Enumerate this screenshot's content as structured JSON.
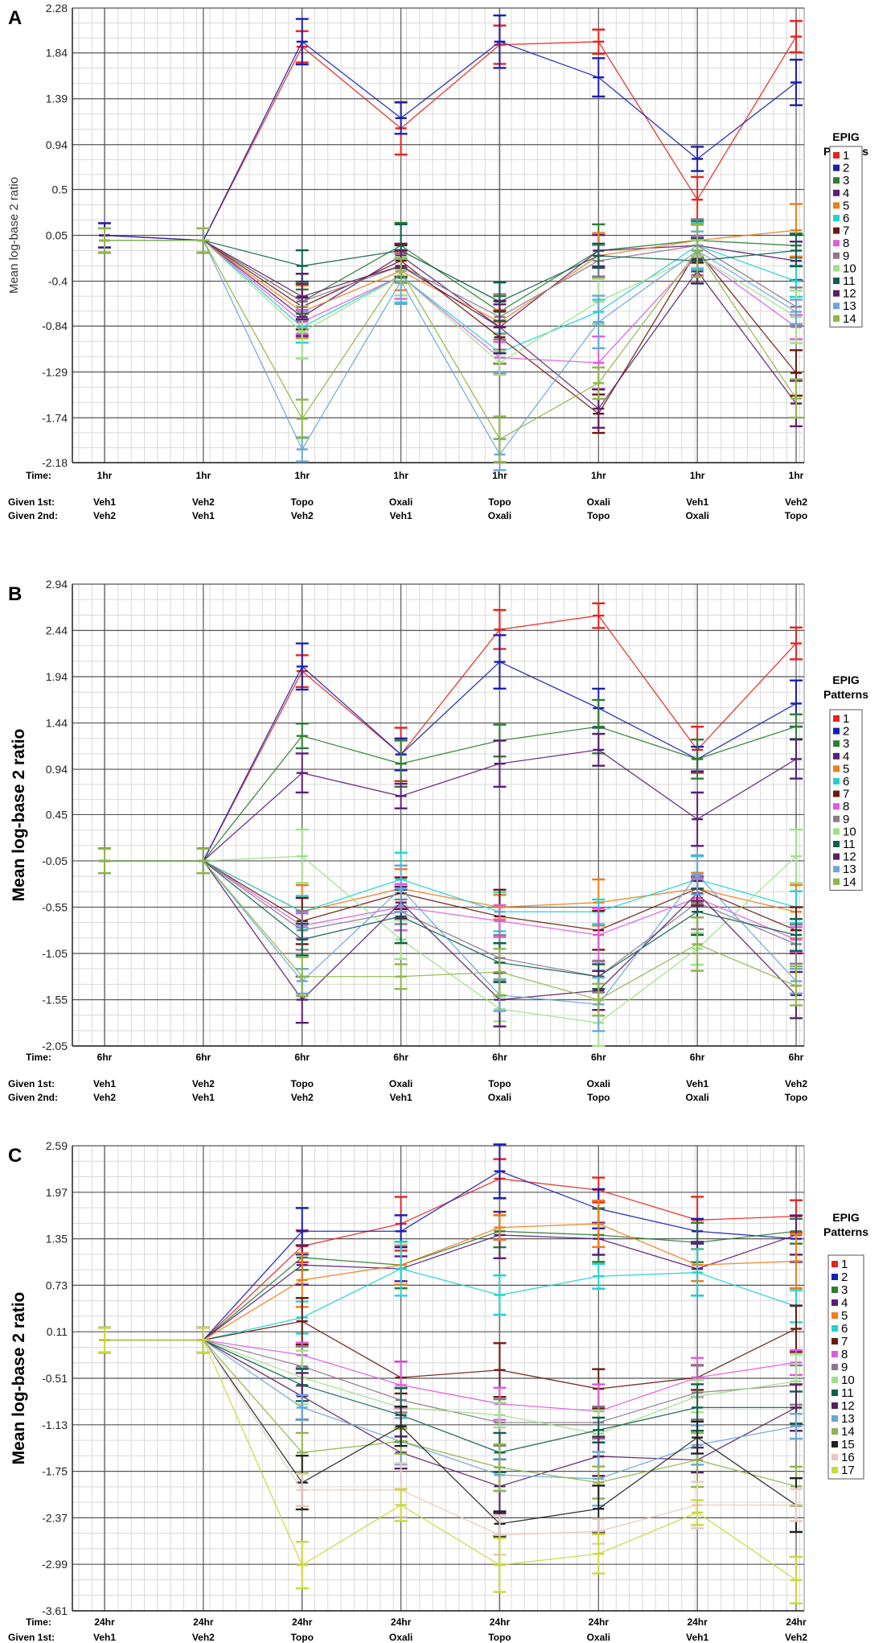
{
  "figure": {
    "conditions_row1_label": "Given 1st:",
    "conditions_row2_label": "Given 2nd:",
    "time_label": "Time:",
    "given1": [
      "Veh1",
      "Veh2",
      "Topo",
      "Oxali",
      "Topo",
      "Oxali",
      "Veh1",
      "Veh2"
    ],
    "given2": [
      "Veh2",
      "Veh1",
      "Veh2",
      "Veh1",
      "Oxali",
      "Topo",
      "Oxali",
      "Topo"
    ],
    "legend_title_1": "EPIG",
    "legend_title_2": "Patterns"
  },
  "palette": [
    "#e8231e",
    "#1b1fb0",
    "#2e7d32",
    "#5b1d7a",
    "#ee7d1c",
    "#22d3d3",
    "#6b1a10",
    "#e05ae0",
    "#8a7a8a",
    "#9fe08a",
    "#0f5f4e",
    "#5a1f66",
    "#6aa6d8",
    "#8fb54a",
    "#222222",
    "#e6c9c0",
    "#c8d93a"
  ],
  "chart_data": [
    {
      "panel": "A",
      "type": "line",
      "ylabel": "Mean log-base 2 ratio",
      "yticks": [
        2.28,
        1.84,
        1.39,
        0.94,
        0.5,
        0.05,
        -0.4,
        -0.84,
        -1.29,
        -1.74,
        -2.18
      ],
      "ylim": [
        -2.18,
        2.28
      ],
      "time": "1hr",
      "legend": [
        "1",
        "2",
        "3",
        "4",
        "5",
        "6",
        "7",
        "8",
        "9",
        "10",
        "11",
        "12",
        "13",
        "14"
      ],
      "series": [
        {
          "name": "1",
          "values": [
            0.05,
            0.0,
            1.9,
            1.1,
            1.92,
            1.95,
            0.4,
            2.0
          ]
        },
        {
          "name": "2",
          "values": [
            0.05,
            0.0,
            1.95,
            1.2,
            1.95,
            1.6,
            0.8,
            1.55
          ]
        },
        {
          "name": "3",
          "values": [
            0.0,
            0.0,
            -0.6,
            -0.05,
            -0.7,
            -0.1,
            0.0,
            -0.05
          ]
        },
        {
          "name": "4",
          "values": [
            0.0,
            0.0,
            -0.75,
            -0.15,
            -0.85,
            -0.1,
            -0.05,
            -0.2
          ]
        },
        {
          "name": "5",
          "values": [
            0.0,
            0.0,
            -0.7,
            -0.3,
            -0.8,
            -0.15,
            0.0,
            0.1
          ]
        },
        {
          "name": "6",
          "values": [
            0.0,
            0.0,
            -0.85,
            -0.35,
            -1.1,
            -0.7,
            -0.05,
            -0.4
          ]
        },
        {
          "name": "7",
          "values": [
            0.0,
            0.0,
            -0.65,
            -0.2,
            -0.95,
            -1.7,
            -0.1,
            -1.3
          ]
        },
        {
          "name": "8",
          "values": [
            0.0,
            0.0,
            -0.8,
            -0.35,
            -1.15,
            -1.2,
            -0.15,
            -0.85
          ]
        },
        {
          "name": "9",
          "values": [
            0.0,
            0.0,
            -0.6,
            -0.25,
            -0.75,
            -0.2,
            -0.05,
            -0.65
          ]
        },
        {
          "name": "10",
          "values": [
            0.0,
            0.0,
            -0.9,
            -0.35,
            -1.2,
            -0.6,
            -0.15,
            -0.75
          ]
        },
        {
          "name": "11",
          "values": [
            0.0,
            0.0,
            -0.25,
            -0.1,
            -0.6,
            -0.15,
            -0.2,
            -0.1
          ]
        },
        {
          "name": "12",
          "values": [
            0.0,
            0.0,
            -0.55,
            -0.25,
            -0.85,
            -1.65,
            -0.3,
            -1.6
          ]
        },
        {
          "name": "13",
          "values": [
            0.0,
            0.0,
            -2.05,
            -0.4,
            -2.1,
            -0.8,
            -0.1,
            -0.7
          ]
        },
        {
          "name": "14",
          "values": [
            0.0,
            0.0,
            -1.75,
            -0.3,
            -1.95,
            -1.4,
            -0.1,
            -1.55
          ]
        }
      ]
    },
    {
      "panel": "B",
      "type": "line",
      "ylabel": "Mean log-base 2 ratio",
      "yticks": [
        2.94,
        2.44,
        1.94,
        1.44,
        0.94,
        0.45,
        -0.05,
        -0.55,
        -1.05,
        -1.55,
        -2.05
      ],
      "ylim": [
        -2.05,
        2.94
      ],
      "time": "6hr",
      "legend": [
        "1",
        "2",
        "3",
        "4",
        "5",
        "6",
        "7",
        "8",
        "9",
        "10",
        "11",
        "12",
        "13",
        "14"
      ],
      "series": [
        {
          "name": "1",
          "values": [
            -0.05,
            -0.05,
            2.0,
            1.1,
            2.45,
            2.6,
            1.15,
            2.3
          ]
        },
        {
          "name": "2",
          "values": [
            -0.05,
            -0.05,
            2.05,
            1.1,
            2.1,
            1.6,
            1.05,
            1.65
          ]
        },
        {
          "name": "3",
          "values": [
            -0.05,
            -0.05,
            1.3,
            1.0,
            1.25,
            1.4,
            1.05,
            1.4
          ]
        },
        {
          "name": "4",
          "values": [
            -0.05,
            -0.05,
            0.9,
            0.65,
            1.0,
            1.15,
            0.4,
            1.05
          ]
        },
        {
          "name": "5",
          "values": [
            -0.05,
            -0.05,
            -0.6,
            -0.35,
            -0.55,
            -0.5,
            -0.35,
            -0.6
          ]
        },
        {
          "name": "6",
          "values": [
            -0.05,
            -0.05,
            -0.6,
            -0.25,
            -0.6,
            -0.6,
            -0.25,
            -0.55
          ]
        },
        {
          "name": "7",
          "values": [
            -0.05,
            -0.05,
            -0.7,
            -0.4,
            -0.65,
            -0.8,
            -0.35,
            -0.8
          ]
        },
        {
          "name": "8",
          "values": [
            -0.05,
            -0.05,
            -0.75,
            -0.55,
            -0.7,
            -0.85,
            -0.45,
            -0.9
          ]
        },
        {
          "name": "9",
          "values": [
            -0.05,
            -0.05,
            -0.8,
            -0.6,
            -1.1,
            -1.3,
            -0.5,
            -0.95
          ]
        },
        {
          "name": "10",
          "values": [
            -0.05,
            -0.05,
            0.0,
            -0.9,
            -1.65,
            -1.8,
            -1.0,
            0.0
          ]
        },
        {
          "name": "11",
          "values": [
            -0.05,
            -0.05,
            -0.9,
            -0.65,
            -1.15,
            -1.3,
            -0.6,
            -0.85
          ]
        },
        {
          "name": "12",
          "values": [
            -0.05,
            -0.05,
            -1.55,
            -0.5,
            -1.55,
            -1.45,
            -0.4,
            -1.5
          ]
        },
        {
          "name": "13",
          "values": [
            -0.05,
            -0.05,
            -1.35,
            -0.35,
            -1.5,
            -1.6,
            -0.2,
            -1.35
          ]
        },
        {
          "name": "14",
          "values": [
            -0.05,
            -0.05,
            -1.3,
            -1.3,
            -1.25,
            -1.55,
            -0.95,
            -1.4
          ]
        }
      ]
    },
    {
      "panel": "C",
      "type": "line",
      "ylabel": "Mean log-base 2 ratio",
      "yticks": [
        2.59,
        1.97,
        1.35,
        0.73,
        0.11,
        -0.51,
        -1.13,
        -1.75,
        -2.37,
        -2.99,
        -3.61
      ],
      "ylim": [
        -3.61,
        2.59
      ],
      "time": "24hr",
      "legend": [
        "1",
        "2",
        "3",
        "4",
        "5",
        "6",
        "7",
        "8",
        "9",
        "10",
        "11",
        "12",
        "13",
        "14",
        "15",
        "16",
        "17"
      ],
      "series": [
        {
          "name": "1",
          "values": [
            0.0,
            0.0,
            1.25,
            1.55,
            2.15,
            2.0,
            1.6,
            1.65
          ]
        },
        {
          "name": "2",
          "values": [
            0.0,
            0.0,
            1.45,
            1.45,
            2.25,
            1.75,
            1.45,
            1.35
          ]
        },
        {
          "name": "3",
          "values": [
            0.0,
            0.0,
            1.1,
            1.0,
            1.45,
            1.4,
            1.3,
            1.45
          ]
        },
        {
          "name": "4",
          "values": [
            0.0,
            0.0,
            1.0,
            0.95,
            1.4,
            1.35,
            0.95,
            1.4
          ]
        },
        {
          "name": "5",
          "values": [
            0.0,
            0.0,
            0.8,
            1.0,
            1.5,
            1.55,
            1.0,
            1.05
          ]
        },
        {
          "name": "6",
          "values": [
            0.0,
            0.0,
            0.3,
            0.95,
            0.6,
            0.85,
            0.9,
            0.45
          ]
        },
        {
          "name": "7",
          "values": [
            0.0,
            0.0,
            0.25,
            -0.5,
            -0.4,
            -0.65,
            -0.5,
            0.15
          ]
        },
        {
          "name": "8",
          "values": [
            0.0,
            0.0,
            -0.2,
            -0.6,
            -0.85,
            -0.95,
            -0.5,
            -0.3
          ]
        },
        {
          "name": "9",
          "values": [
            0.0,
            0.0,
            -0.35,
            -0.8,
            -1.1,
            -1.1,
            -0.7,
            -0.6
          ]
        },
        {
          "name": "10",
          "values": [
            0.0,
            0.0,
            -0.5,
            -0.9,
            -1.0,
            -1.25,
            -0.75,
            -0.55
          ]
        },
        {
          "name": "11",
          "values": [
            0.0,
            0.0,
            -0.6,
            -1.0,
            -1.5,
            -1.2,
            -0.9,
            -0.9
          ]
        },
        {
          "name": "12",
          "values": [
            0.0,
            0.0,
            -0.75,
            -1.5,
            -1.95,
            -1.55,
            -1.6,
            -0.9
          ]
        },
        {
          "name": "13",
          "values": [
            0.0,
            0.0,
            -0.9,
            -1.35,
            -1.8,
            -1.85,
            -1.4,
            -1.15
          ]
        },
        {
          "name": "14",
          "values": [
            0.0,
            0.0,
            -1.5,
            -1.35,
            -1.7,
            -1.9,
            -1.6,
            -1.95
          ]
        },
        {
          "name": "15",
          "values": [
            0.0,
            0.0,
            -1.9,
            -1.15,
            -2.45,
            -2.25,
            -1.3,
            -2.2
          ]
        },
        {
          "name": "16",
          "values": [
            0.0,
            0.0,
            -2.0,
            -2.0,
            -2.6,
            -2.55,
            -2.2,
            -2.2
          ]
        },
        {
          "name": "17",
          "values": [
            0.0,
            0.0,
            -3.0,
            -2.2,
            -3.0,
            -2.85,
            -2.3,
            -3.2
          ]
        }
      ]
    }
  ]
}
